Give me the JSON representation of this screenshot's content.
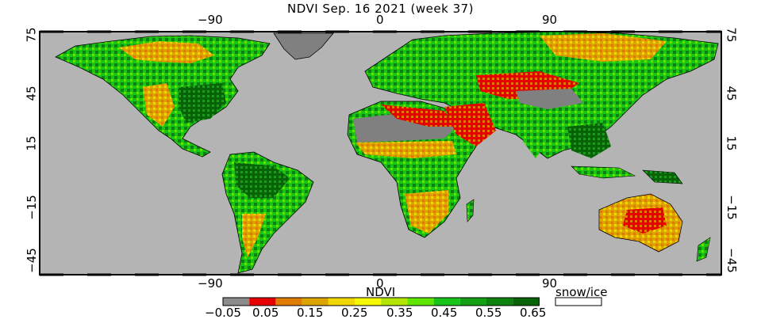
{
  "title": "NDVI Sep. 16 2021 (week 37)",
  "lon_ticks_top": [
    "−90",
    "0",
    "90"
  ],
  "lon_ticks_bottom": [
    "−90",
    "0",
    "90"
  ],
  "lat_ticks_left": [
    "75",
    "45",
    "15",
    "−15",
    "−45"
  ],
  "lat_ticks_right": [
    "75",
    "45",
    "15",
    "−15",
    "−45"
  ],
  "legend": {
    "title": "NDVI",
    "snow_label": "snow/ice",
    "snow_color": "#ffffff",
    "tick_labels": [
      "−0.05",
      "0.05",
      "0.15",
      "0.25",
      "0.35",
      "0.45",
      "0.55",
      "0.65"
    ],
    "colors": [
      "#8c8c8c",
      "#e60000",
      "#e07a00",
      "#dba400",
      "#f2d600",
      "#f7f700",
      "#b2e600",
      "#5ee600",
      "#17c417",
      "#14a014",
      "#0e820e",
      "#066406"
    ]
  },
  "map": {
    "ocean_color": "#b4b4b4",
    "missing_color": "#808080",
    "border_color": "#000000"
  }
}
